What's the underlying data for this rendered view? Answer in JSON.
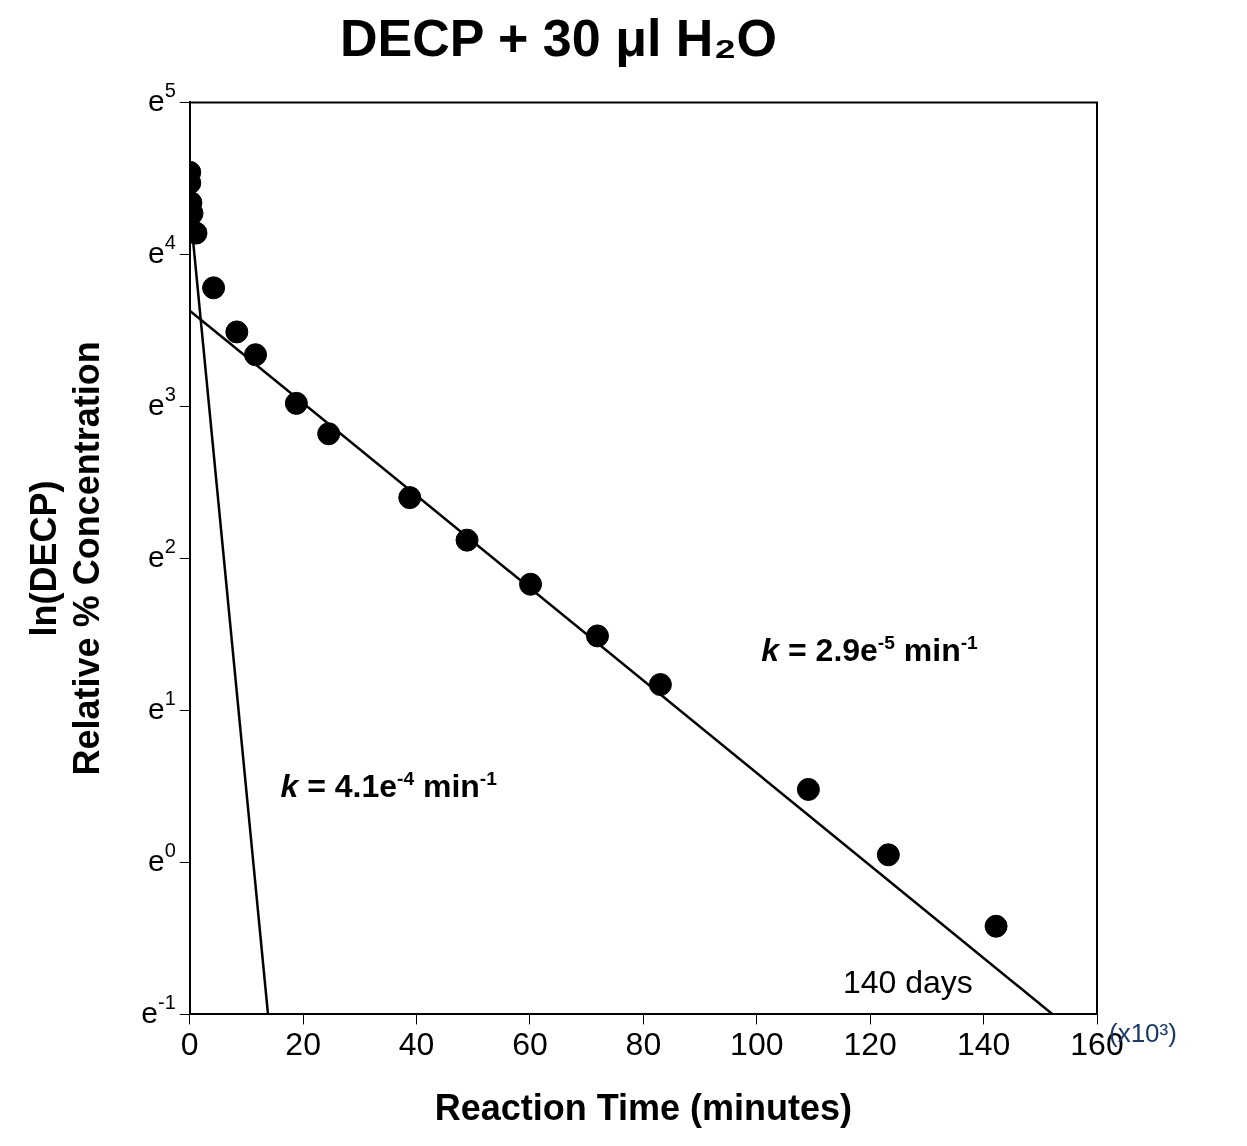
{
  "chart_data": {
    "type": "scatter",
    "title": "DECP + 30 μl H₂O",
    "xlabel": "Reaction Time (minutes)",
    "ylabel": "ln(DECP)\nRelative % Concentration",
    "xlim": [
      0,
      160
    ],
    "xticks": [
      0,
      20,
      40,
      60,
      80,
      100,
      120,
      140,
      160
    ],
    "ylim": [
      -1,
      5
    ],
    "yticks": [
      {
        "value": -1,
        "label": "e$^{-1}$"
      },
      {
        "value": 0,
        "label": "e$^{0}$"
      },
      {
        "value": 1,
        "label": "e$^{1}$"
      },
      {
        "value": 2,
        "label": "e$^{2}$"
      },
      {
        "value": 3,
        "label": "e$^{3}$"
      },
      {
        "value": 4,
        "label": "e$^{4}$"
      },
      {
        "value": 5,
        "label": "e$^{5}$"
      }
    ],
    "grid": false,
    "marker": "circle",
    "series": [
      {
        "color": "#000000",
        "x": [
          0,
          0,
          0.2,
          0.4,
          1.1,
          4.2,
          8.3,
          11.6,
          18.8,
          24.5,
          38.8,
          48.9,
          60.1,
          71.9,
          83.0,
          109.1,
          123.2,
          142.2
        ],
        "values": [
          4.54,
          4.47,
          4.34,
          4.27,
          4.14,
          3.78,
          3.49,
          3.34,
          3.02,
          2.82,
          2.4,
          2.12,
          1.83,
          1.49,
          1.17,
          0.48,
          0.05,
          -0.42
        ]
      },
      {
        "type": "line",
        "marker": "none",
        "color": "#000000",
        "x": [
          0,
          152.2
        ],
        "values": [
          3.63,
          -1
        ]
      },
      {
        "type": "line",
        "marker": "none",
        "color": "#000000",
        "x": [
          0.3,
          13.8
        ],
        "values": [
          4.2,
          -1
        ]
      }
    ],
    "annotations": [
      "k = 2.9e$^{-5}$ min$^{-1}$",
      "k = 4.1e$^{-4}$ min$^{-1}$",
      "140 days",
      "(x10³)"
    ]
  }
}
